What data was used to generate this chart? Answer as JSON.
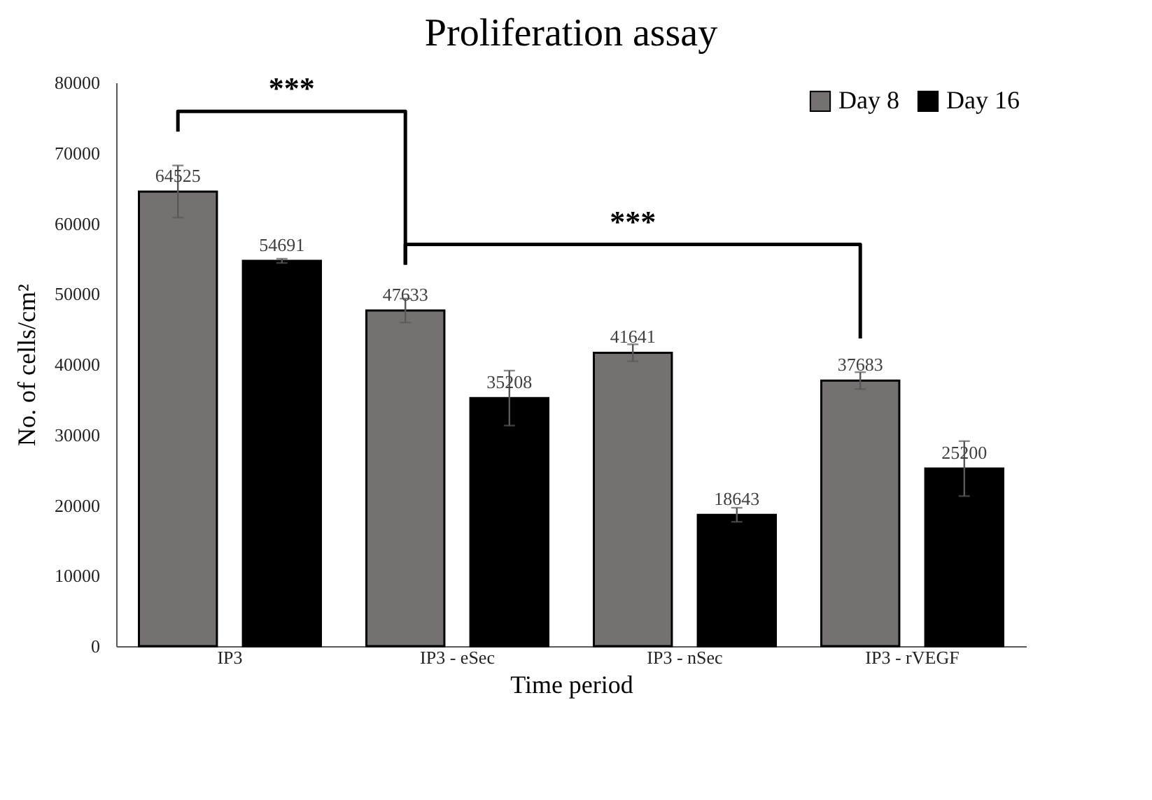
{
  "chart_data": {
    "type": "bar",
    "title": "Proliferation assay",
    "xlabel": "Time period",
    "ylabel": "No. of cells/cm²",
    "categories": [
      "IP3",
      "IP3 - eSec",
      "IP3 - nSec",
      "IP3 - rVEGF"
    ],
    "series": [
      {
        "name": "Day 8",
        "color": "#767171",
        "values": [
          64525,
          47633,
          41641,
          37683
        ],
        "errors": [
          3700,
          1700,
          1200,
          1200
        ]
      },
      {
        "name": "Day 16",
        "color": "#000000",
        "values": [
          54691,
          35208,
          18643,
          25200
        ],
        "errors": [
          300,
          3900,
          1000,
          3900
        ]
      }
    ],
    "ylim": [
      0,
      80000
    ],
    "yticks": [
      0,
      10000,
      20000,
      30000,
      40000,
      50000,
      60000,
      70000,
      80000
    ],
    "data_labels": true,
    "grid": false,
    "legend": "top right",
    "annotations": [
      "***",
      "***"
    ]
  }
}
